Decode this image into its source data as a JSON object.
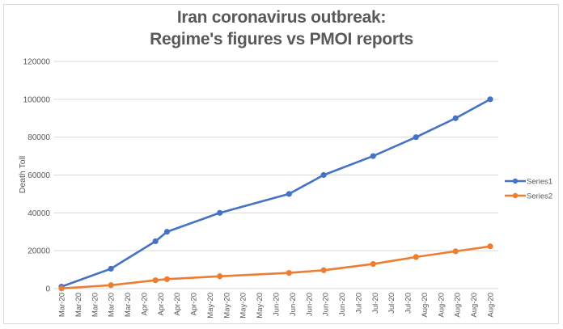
{
  "chart_data": {
    "type": "line",
    "title_line1": "Iran coronavirus outbreak:",
    "title_line2": "Regime's figures vs PMOI reports",
    "xlabel": "",
    "ylabel": "Death Toll",
    "ylim": [
      0,
      120000
    ],
    "yticks": [
      0,
      20000,
      40000,
      60000,
      80000,
      100000,
      120000
    ],
    "ytick_labels": [
      "0",
      "20000",
      "40000",
      "60000",
      "80000",
      "100000",
      "120000"
    ],
    "grid": true,
    "legend_position": "right",
    "xtick_labels": [
      "Mar-20",
      "Mar-20",
      "Mar-20",
      "Mar-20",
      "Mar-20",
      "Apr-20",
      "Apr-20",
      "Apr-20",
      "Apr-20",
      "May-20",
      "May-20",
      "May-20",
      "May-20",
      "Jun-20",
      "Jun-20",
      "Jun-20",
      "Jun-20",
      "Jun-20",
      "Jul-20",
      "Jul-20",
      "Jul-20",
      "Jul-20",
      "Aug-20",
      "Aug-20",
      "Aug-20",
      "Aug-20",
      "Aug-20"
    ],
    "x": [
      0,
      3,
      5.7,
      6.4,
      9.6,
      13.8,
      15.9,
      18.9,
      21.5,
      23.9,
      26
    ],
    "series": [
      {
        "name": "Series1",
        "color": "#4472c4",
        "values": [
          1000,
          10500,
          25000,
          30000,
          40000,
          50000,
          60000,
          70000,
          80000,
          90000,
          100000
        ]
      },
      {
        "name": "Series2",
        "color": "#ed7d31",
        "values": [
          100,
          1800,
          4400,
          5000,
          6500,
          8300,
          9700,
          13000,
          16700,
          19700,
          22300
        ]
      }
    ]
  }
}
